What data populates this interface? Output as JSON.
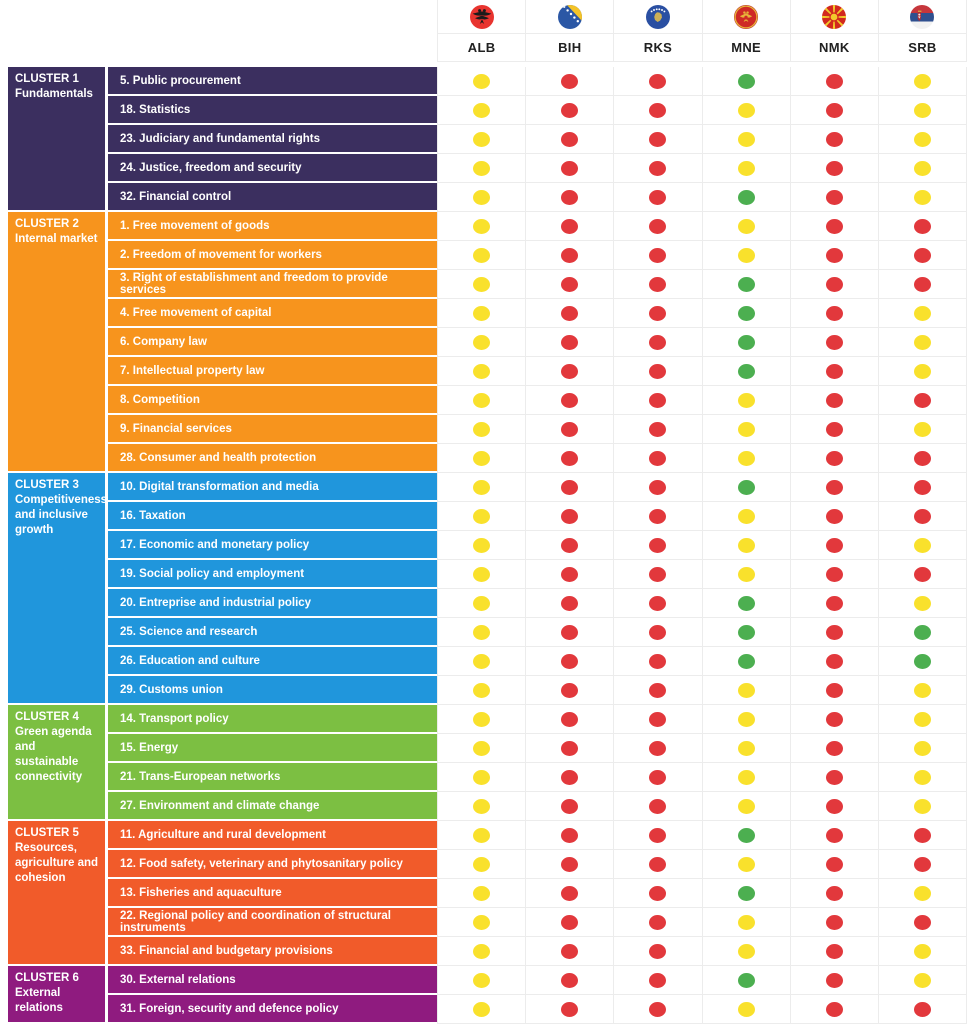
{
  "chart_data": {
    "type": "table",
    "description": "EU accession chapter status matrix by cluster for six Western Balkan countries; each cell is a traffic-light status dot",
    "columns": [
      {
        "code": "ALB",
        "flag": "albania"
      },
      {
        "code": "BIH",
        "flag": "bosnia-herzegovina"
      },
      {
        "code": "RKS",
        "flag": "kosovo"
      },
      {
        "code": "MNE",
        "flag": "montenegro"
      },
      {
        "code": "NMK",
        "flag": "north-macedonia"
      },
      {
        "code": "SRB",
        "flag": "serbia"
      }
    ],
    "status_colors": {
      "yellow": "#F9E12C",
      "red": "#E2383C",
      "green": "#4CAF50"
    },
    "clusters": [
      {
        "label": "CLUSTER 1",
        "name": "Fundamentals",
        "color": "#3B2F5F",
        "chapters": [
          {
            "title": "5. Public procurement",
            "statuses": [
              "yellow",
              "red",
              "red",
              "green",
              "red",
              "yellow"
            ]
          },
          {
            "title": "18. Statistics",
            "statuses": [
              "yellow",
              "red",
              "red",
              "yellow",
              "red",
              "yellow"
            ]
          },
          {
            "title": "23. Judiciary and fundamental rights",
            "statuses": [
              "yellow",
              "red",
              "red",
              "yellow",
              "red",
              "yellow"
            ]
          },
          {
            "title": "24. Justice, freedom and security",
            "statuses": [
              "yellow",
              "red",
              "red",
              "yellow",
              "red",
              "yellow"
            ]
          },
          {
            "title": "32. Financial control",
            "statuses": [
              "yellow",
              "red",
              "red",
              "green",
              "red",
              "yellow"
            ]
          }
        ]
      },
      {
        "label": "CLUSTER 2",
        "name": "Internal market",
        "color": "#F7941D",
        "chapters": [
          {
            "title": "1. Free movement of goods",
            "statuses": [
              "yellow",
              "red",
              "red",
              "yellow",
              "red",
              "red"
            ]
          },
          {
            "title": "2. Freedom of movement for workers",
            "statuses": [
              "yellow",
              "red",
              "red",
              "yellow",
              "red",
              "red"
            ]
          },
          {
            "title": "3. Right of establishment and freedom to provide services",
            "statuses": [
              "yellow",
              "red",
              "red",
              "green",
              "red",
              "red"
            ]
          },
          {
            "title": "4. Free movement of capital",
            "statuses": [
              "yellow",
              "red",
              "red",
              "green",
              "red",
              "yellow"
            ]
          },
          {
            "title": "6. Company law",
            "statuses": [
              "yellow",
              "red",
              "red",
              "green",
              "red",
              "yellow"
            ]
          },
          {
            "title": "7. Intellectual property law",
            "statuses": [
              "yellow",
              "red",
              "red",
              "green",
              "red",
              "yellow"
            ]
          },
          {
            "title": "8. Competition",
            "statuses": [
              "yellow",
              "red",
              "red",
              "yellow",
              "red",
              "red"
            ]
          },
          {
            "title": "9. Financial services",
            "statuses": [
              "yellow",
              "red",
              "red",
              "yellow",
              "red",
              "yellow"
            ]
          },
          {
            "title": "28. Consumer and health protection",
            "statuses": [
              "yellow",
              "red",
              "red",
              "yellow",
              "red",
              "red"
            ]
          }
        ]
      },
      {
        "label": "CLUSTER 3",
        "name": "Competitiveness and inclusive growth",
        "color": "#2096DC",
        "chapters": [
          {
            "title": "10. Digital transformation and media",
            "statuses": [
              "yellow",
              "red",
              "red",
              "green",
              "red",
              "red"
            ]
          },
          {
            "title": "16. Taxation",
            "statuses": [
              "yellow",
              "red",
              "red",
              "yellow",
              "red",
              "red"
            ]
          },
          {
            "title": "17. Economic and monetary policy",
            "statuses": [
              "yellow",
              "red",
              "red",
              "yellow",
              "red",
              "yellow"
            ]
          },
          {
            "title": "19. Social policy and employment",
            "statuses": [
              "yellow",
              "red",
              "red",
              "yellow",
              "red",
              "red"
            ]
          },
          {
            "title": "20. Entreprise and industrial policy",
            "statuses": [
              "yellow",
              "red",
              "red",
              "green",
              "red",
              "yellow"
            ]
          },
          {
            "title": "25. Science and research",
            "statuses": [
              "yellow",
              "red",
              "red",
              "green",
              "red",
              "green"
            ]
          },
          {
            "title": "26. Education and culture",
            "statuses": [
              "yellow",
              "red",
              "red",
              "green",
              "red",
              "green"
            ]
          },
          {
            "title": "29. Customs union",
            "statuses": [
              "yellow",
              "red",
              "red",
              "yellow",
              "red",
              "yellow"
            ]
          }
        ]
      },
      {
        "label": "CLUSTER 4",
        "name": "Green agenda and sustainable connectivity",
        "color": "#7CBF42",
        "chapters": [
          {
            "title": "14. Transport policy",
            "statuses": [
              "yellow",
              "red",
              "red",
              "yellow",
              "red",
              "yellow"
            ]
          },
          {
            "title": "15. Energy",
            "statuses": [
              "yellow",
              "red",
              "red",
              "yellow",
              "red",
              "yellow"
            ]
          },
          {
            "title": "21. Trans-European networks",
            "statuses": [
              "yellow",
              "red",
              "red",
              "yellow",
              "red",
              "yellow"
            ]
          },
          {
            "title": "27. Environment and climate change",
            "statuses": [
              "yellow",
              "red",
              "red",
              "yellow",
              "red",
              "yellow"
            ]
          }
        ]
      },
      {
        "label": "CLUSTER 5",
        "name": "Resources, agriculture and cohesion",
        "color": "#F15B2A",
        "chapters": [
          {
            "title": "11. Agriculture and rural development",
            "statuses": [
              "yellow",
              "red",
              "red",
              "green",
              "red",
              "red"
            ]
          },
          {
            "title": "12. Food safety, veterinary and phytosanitary policy",
            "statuses": [
              "yellow",
              "red",
              "red",
              "yellow",
              "red",
              "red"
            ]
          },
          {
            "title": "13. Fisheries and aquaculture",
            "statuses": [
              "yellow",
              "red",
              "red",
              "green",
              "red",
              "yellow"
            ]
          },
          {
            "title": "22. Regional policy and coordination of structural instruments",
            "statuses": [
              "yellow",
              "red",
              "red",
              "yellow",
              "red",
              "red"
            ]
          },
          {
            "title": "33. Financial and budgetary provisions",
            "statuses": [
              "yellow",
              "red",
              "red",
              "yellow",
              "red",
              "yellow"
            ]
          }
        ]
      },
      {
        "label": "CLUSTER 6",
        "name": "External relations",
        "color": "#8F1B7F",
        "chapters": [
          {
            "title": "30. External relations",
            "statuses": [
              "yellow",
              "red",
              "red",
              "green",
              "red",
              "yellow"
            ]
          },
          {
            "title": "31. Foreign, security and defence policy",
            "statuses": [
              "yellow",
              "red",
              "red",
              "yellow",
              "red",
              "red"
            ]
          }
        ]
      }
    ]
  }
}
